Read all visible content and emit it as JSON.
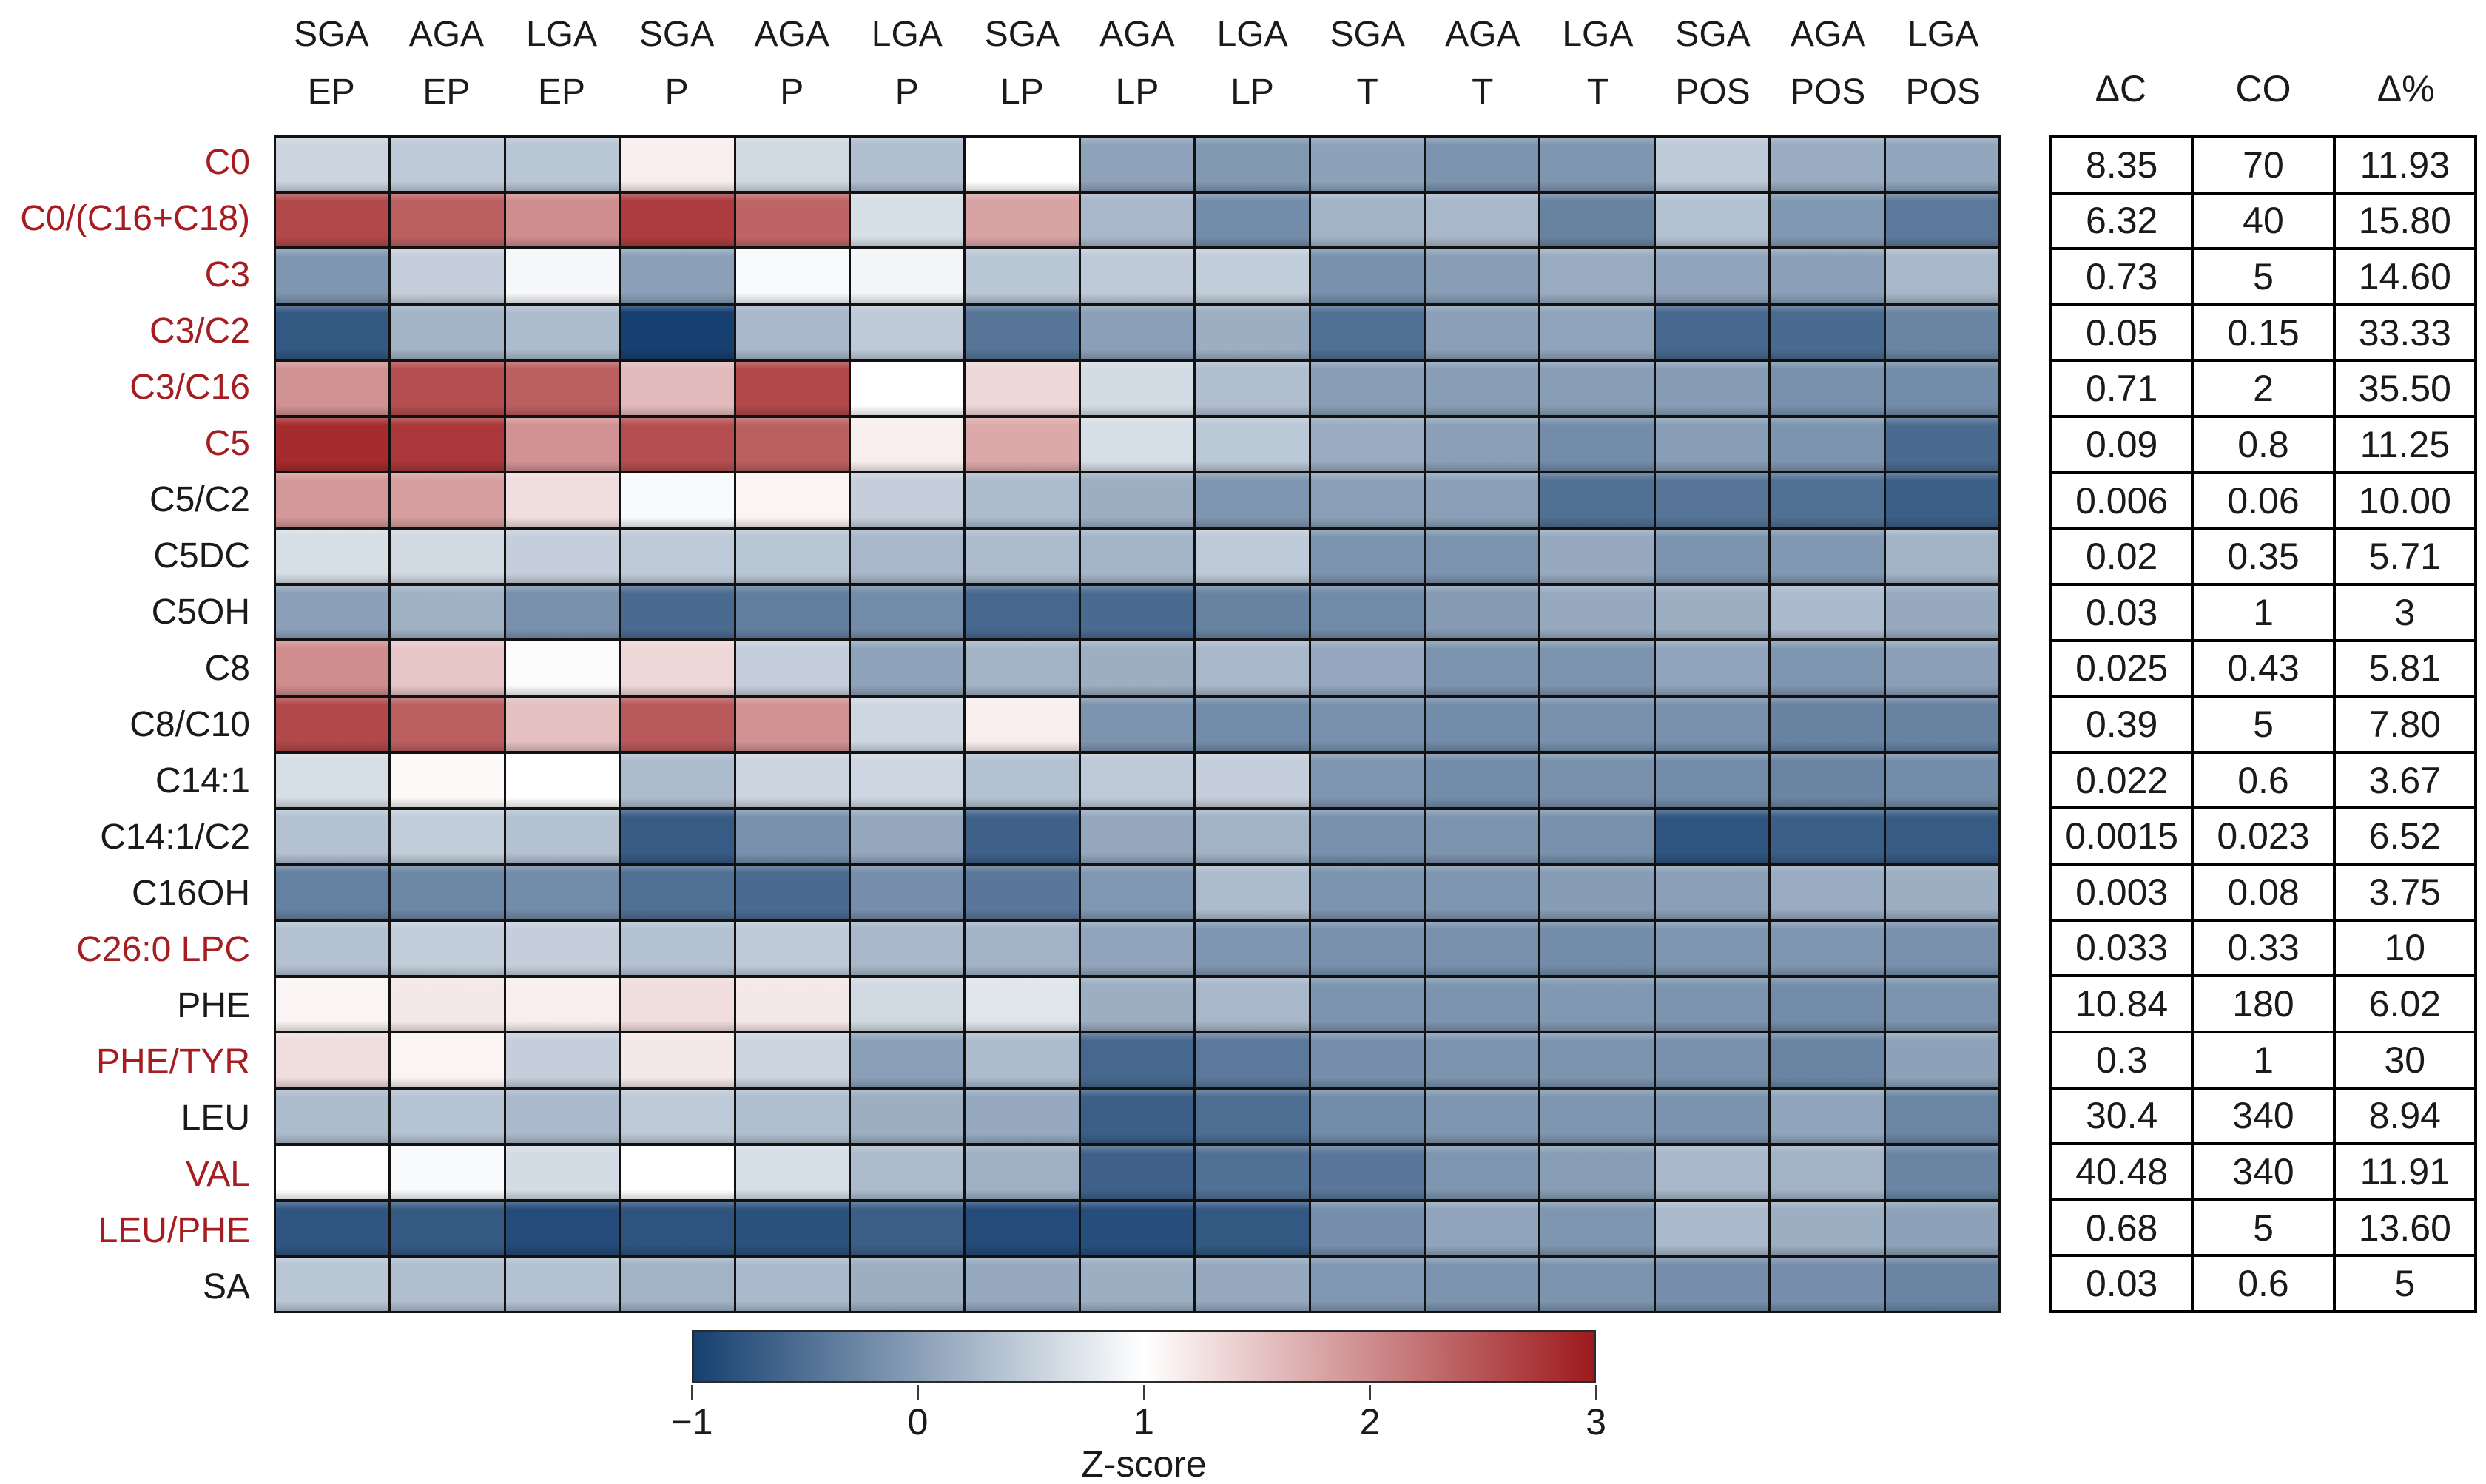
{
  "figure": {
    "z_score_label": "Z-score"
  },
  "side_table": {
    "headers": [
      "ΔC",
      "CO",
      "Δ%"
    ],
    "rows": [
      [
        "8.35",
        "70",
        "11.93"
      ],
      [
        "6.32",
        "40",
        "15.80"
      ],
      [
        "0.73",
        "5",
        "14.60"
      ],
      [
        "0.05",
        "0.15",
        "33.33"
      ],
      [
        "0.71",
        "2",
        "35.50"
      ],
      [
        "0.09",
        "0.8",
        "11.25"
      ],
      [
        "0.006",
        "0.06",
        "10.00"
      ],
      [
        "0.02",
        "0.35",
        "5.71"
      ],
      [
        "0.03",
        "1",
        "3"
      ],
      [
        "0.025",
        "0.43",
        "5.81"
      ],
      [
        "0.39",
        "5",
        "7.80"
      ],
      [
        "0.022",
        "0.6",
        "3.67"
      ],
      [
        "0.0015",
        "0.023",
        "6.52"
      ],
      [
        "0.003",
        "0.08",
        "3.75"
      ],
      [
        "0.033",
        "0.33",
        "10"
      ],
      [
        "10.84",
        "180",
        "6.02"
      ],
      [
        "0.3",
        "1",
        "30"
      ],
      [
        "30.4",
        "340",
        "8.94"
      ],
      [
        "40.48",
        "340",
        "11.91"
      ],
      [
        "0.68",
        "5",
        "13.60"
      ],
      [
        "0.03",
        "0.6",
        "5"
      ]
    ]
  },
  "chart_data": {
    "type": "heatmap",
    "title": "",
    "xlabel": "",
    "ylabel": "",
    "legend_position": "bottom",
    "columns": [
      {
        "group": "SGA",
        "stage": "EP"
      },
      {
        "group": "AGA",
        "stage": "EP"
      },
      {
        "group": "LGA",
        "stage": "EP"
      },
      {
        "group": "SGA",
        "stage": "P"
      },
      {
        "group": "AGA",
        "stage": "P"
      },
      {
        "group": "LGA",
        "stage": "P"
      },
      {
        "group": "SGA",
        "stage": "LP"
      },
      {
        "group": "AGA",
        "stage": "LP"
      },
      {
        "group": "LGA",
        "stage": "LP"
      },
      {
        "group": "SGA",
        "stage": "T"
      },
      {
        "group": "AGA",
        "stage": "T"
      },
      {
        "group": "LGA",
        "stage": "T"
      },
      {
        "group": "SGA",
        "stage": "POS"
      },
      {
        "group": "AGA",
        "stage": "POS"
      },
      {
        "group": "LGA",
        "stage": "POS"
      }
    ],
    "rows": [
      {
        "label": "C0",
        "highlight": true
      },
      {
        "label": "C0/(C16+C18)",
        "highlight": true
      },
      {
        "label": "C3",
        "highlight": true
      },
      {
        "label": "C3/C2",
        "highlight": true
      },
      {
        "label": "C3/C16",
        "highlight": true
      },
      {
        "label": "C5",
        "highlight": true
      },
      {
        "label": "C5/C2",
        "highlight": false
      },
      {
        "label": "C5DC",
        "highlight": false
      },
      {
        "label": "C5OH",
        "highlight": false
      },
      {
        "label": "C8",
        "highlight": false
      },
      {
        "label": "C8/C10",
        "highlight": false
      },
      {
        "label": "C14:1",
        "highlight": false
      },
      {
        "label": "C14:1/C2",
        "highlight": false
      },
      {
        "label": "C16OH",
        "highlight": false
      },
      {
        "label": "C26:0 LPC",
        "highlight": true
      },
      {
        "label": "PHE",
        "highlight": false
      },
      {
        "label": "PHE/TYR",
        "highlight": true
      },
      {
        "label": "LEU",
        "highlight": false
      },
      {
        "label": "VAL",
        "highlight": true
      },
      {
        "label": "LEU/PHE",
        "highlight": true
      },
      {
        "label": "SA",
        "highlight": false
      }
    ],
    "highlight_label_color": "#a51d20",
    "label_color": "#1a1a1a",
    "z_values": [
      [
        0.55,
        0.45,
        0.4,
        1.15,
        0.6,
        0.32,
        1.0,
        0.03,
        -0.07,
        0.02,
        -0.12,
        -0.1,
        0.45,
        0.13,
        0.06
      ],
      [
        2.6,
        2.4,
        2.0,
        2.7,
        2.35,
        0.65,
        1.8,
        0.25,
        -0.2,
        0.2,
        0.25,
        -0.3,
        0.35,
        -0.08,
        -0.4
      ],
      [
        -0.1,
        0.5,
        0.92,
        0.0,
        0.95,
        0.9,
        0.4,
        0.45,
        0.48,
        -0.15,
        -0.02,
        0.12,
        0.05,
        0.0,
        0.25
      ],
      [
        -0.75,
        0.2,
        0.3,
        -1.0,
        0.25,
        0.45,
        -0.45,
        0.0,
        0.15,
        -0.5,
        0.0,
        0.05,
        -0.58,
        -0.55,
        -0.28
      ],
      [
        1.95,
        2.55,
        2.4,
        1.6,
        2.6,
        1.0,
        1.35,
        0.62,
        0.32,
        -0.02,
        -0.02,
        -0.02,
        -0.03,
        -0.15,
        -0.2
      ],
      [
        2.85,
        2.75,
        1.95,
        2.55,
        2.4,
        1.15,
        1.75,
        0.65,
        0.42,
        0.12,
        0.0,
        -0.2,
        -0.02,
        -0.12,
        -0.55
      ],
      [
        1.9,
        1.85,
        1.3,
        0.95,
        1.1,
        0.5,
        0.3,
        0.15,
        -0.1,
        0.0,
        0.0,
        -0.5,
        -0.45,
        -0.5,
        -0.68
      ],
      [
        0.65,
        0.6,
        0.5,
        0.45,
        0.4,
        0.25,
        0.3,
        0.22,
        0.45,
        -0.12,
        -0.12,
        0.1,
        -0.12,
        -0.08,
        0.2
      ],
      [
        0.0,
        0.18,
        -0.15,
        -0.55,
        -0.35,
        -0.2,
        -0.58,
        -0.55,
        -0.3,
        -0.22,
        -0.05,
        0.1,
        0.15,
        0.28,
        0.1
      ],
      [
        2.0,
        1.5,
        0.97,
        1.35,
        0.5,
        0.03,
        0.2,
        0.15,
        0.25,
        0.07,
        -0.12,
        -0.12,
        0.05,
        -0.1,
        0.0
      ],
      [
        2.6,
        2.4,
        1.55,
        2.45,
        1.95,
        0.58,
        1.15,
        -0.12,
        -0.2,
        -0.15,
        -0.2,
        -0.15,
        -0.15,
        -0.3,
        -0.3
      ],
      [
        0.65,
        1.05,
        1.0,
        0.3,
        0.55,
        0.58,
        0.35,
        0.45,
        0.5,
        -0.1,
        -0.2,
        -0.15,
        -0.2,
        -0.28,
        -0.2
      ],
      [
        0.35,
        0.48,
        0.35,
        -0.72,
        -0.15,
        0.08,
        -0.65,
        0.08,
        0.2,
        -0.15,
        -0.12,
        -0.15,
        -0.78,
        -0.68,
        -0.72
      ],
      [
        -0.32,
        -0.25,
        -0.2,
        -0.5,
        -0.55,
        -0.18,
        -0.42,
        -0.08,
        0.3,
        -0.12,
        -0.1,
        -0.03,
        0.0,
        0.12,
        0.15
      ],
      [
        0.35,
        0.48,
        0.5,
        0.35,
        0.45,
        0.25,
        0.2,
        0.05,
        -0.1,
        -0.15,
        -0.15,
        -0.2,
        -0.1,
        -0.1,
        -0.15
      ],
      [
        1.1,
        1.2,
        1.15,
        1.3,
        1.2,
        0.6,
        0.73,
        0.15,
        0.25,
        -0.12,
        -0.12,
        -0.08,
        -0.12,
        -0.2,
        -0.12
      ],
      [
        1.3,
        1.1,
        0.5,
        1.2,
        0.55,
        0.0,
        0.3,
        -0.58,
        -0.4,
        -0.18,
        -0.12,
        -0.12,
        -0.15,
        -0.28,
        0.02
      ],
      [
        0.3,
        0.37,
        0.27,
        0.43,
        0.32,
        0.15,
        0.1,
        -0.68,
        -0.52,
        -0.2,
        -0.1,
        -0.1,
        -0.13,
        0.05,
        -0.27
      ],
      [
        1.0,
        0.95,
        0.62,
        1.0,
        0.65,
        0.3,
        0.17,
        -0.65,
        -0.5,
        -0.42,
        -0.1,
        -0.02,
        0.25,
        0.2,
        -0.28
      ],
      [
        -0.78,
        -0.73,
        -0.88,
        -0.8,
        -0.82,
        -0.68,
        -0.88,
        -0.85,
        -0.75,
        -0.18,
        0.05,
        -0.1,
        0.27,
        0.15,
        0.02
      ],
      [
        0.4,
        0.32,
        0.35,
        0.2,
        0.28,
        0.15,
        0.1,
        0.15,
        0.1,
        -0.08,
        -0.12,
        -0.12,
        -0.18,
        -0.18,
        -0.28
      ]
    ],
    "colorbar": {
      "min": -1,
      "mid": 1,
      "max": 3,
      "ticks": [
        -1,
        0,
        1,
        2,
        3
      ],
      "tick_labels": [
        "−1",
        "0",
        "1",
        "2",
        "3"
      ],
      "color_min": "#164070",
      "color_mid": "#ffffff",
      "color_max": "#9e1a1d",
      "label": "Z-score"
    }
  }
}
